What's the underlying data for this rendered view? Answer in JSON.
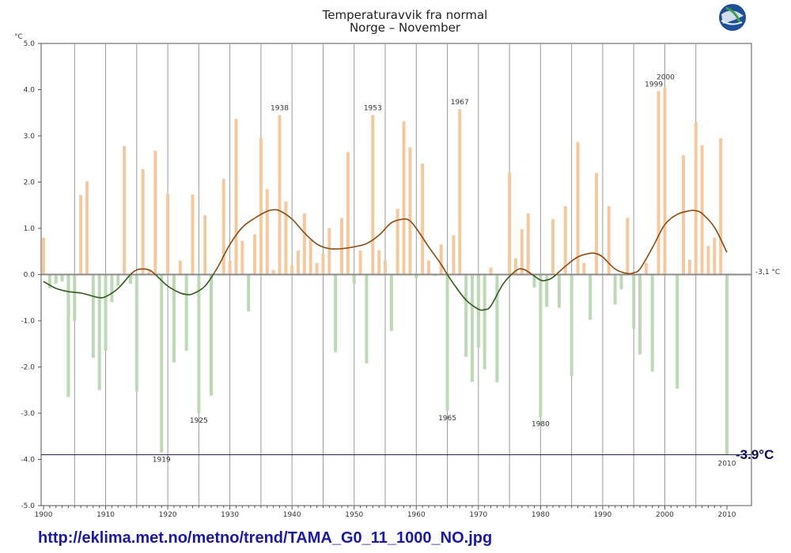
{
  "chart_data": {
    "type": "bar",
    "title": "Temperaturavvik fra normal",
    "subtitle": "Norge – November",
    "ylabel": "°C",
    "xlabel": "",
    "ylim": [
      -5.0,
      5.0
    ],
    "xlim": [
      1900,
      2010
    ],
    "grid": true,
    "y_ticks": [
      "5.0",
      "4.0",
      "3.0",
      "2.0",
      "1.0",
      "0.0",
      "-1.0",
      "-2.0",
      "-3.0",
      "-4.0",
      "-5.0"
    ],
    "y_tick_values": [
      5,
      4,
      3,
      2,
      1,
      0,
      -1,
      -2,
      -3,
      -4,
      -5
    ],
    "x_ticks": [
      1900,
      1910,
      1920,
      1930,
      1940,
      1950,
      1960,
      1970,
      1980,
      1990,
      2000,
      2010
    ],
    "baseline_label": "-3,1 °C",
    "reference_line_value": -3.9,
    "reference_line_label": "-3.9°C",
    "positive_color": "#f5c9a0",
    "negative_color": "#bcd8b4",
    "smooth_positive_color": "#8b4a10",
    "smooth_negative_color": "#2f5a1e",
    "years": [
      1900,
      1901,
      1902,
      1903,
      1904,
      1905,
      1906,
      1907,
      1908,
      1909,
      1910,
      1911,
      1912,
      1913,
      1914,
      1915,
      1916,
      1917,
      1918,
      1919,
      1920,
      1921,
      1922,
      1923,
      1924,
      1925,
      1926,
      1927,
      1928,
      1929,
      1930,
      1931,
      1932,
      1933,
      1934,
      1935,
      1936,
      1937,
      1938,
      1939,
      1940,
      1941,
      1942,
      1943,
      1944,
      1945,
      1946,
      1947,
      1948,
      1949,
      1950,
      1951,
      1952,
      1953,
      1954,
      1955,
      1956,
      1957,
      1958,
      1959,
      1960,
      1961,
      1962,
      1963,
      1964,
      1965,
      1966,
      1967,
      1968,
      1969,
      1970,
      1971,
      1972,
      1973,
      1974,
      1975,
      1976,
      1977,
      1978,
      1979,
      1980,
      1981,
      1982,
      1983,
      1984,
      1985,
      1986,
      1987,
      1988,
      1989,
      1990,
      1991,
      1992,
      1993,
      1994,
      1995,
      1996,
      1997,
      1998,
      1999,
      2000,
      2001,
      2002,
      2003,
      2004,
      2005,
      2006,
      2007,
      2008,
      2009,
      2010
    ],
    "values": [
      0.8,
      -0.3,
      -0.2,
      -0.15,
      -2.65,
      -1.0,
      1.72,
      2.02,
      -1.8,
      -2.5,
      -1.65,
      -0.6,
      -0.25,
      2.78,
      -0.2,
      -2.53,
      2.28,
      0.1,
      2.68,
      -3.85,
      1.75,
      -1.9,
      0.3,
      -1.65,
      1.73,
      -3.0,
      1.28,
      -2.62,
      0.0,
      2.07,
      0.3,
      3.37,
      0.73,
      -0.8,
      0.87,
      2.96,
      1.85,
      0.1,
      3.45,
      1.58,
      0.2,
      0.52,
      1.32,
      0.75,
      0.25,
      0.45,
      1.0,
      -1.68,
      1.22,
      2.65,
      -0.2,
      0.52,
      -1.92,
      3.45,
      0.52,
      0.3,
      -1.22,
      1.42,
      3.32,
      2.75,
      -0.08,
      2.4,
      0.3,
      -0.03,
      0.65,
      -2.95,
      0.85,
      3.58,
      -1.78,
      -2.32,
      -1.58,
      -2.05,
      0.15,
      -2.33,
      0.0,
      2.2,
      0.35,
      0.98,
      1.32,
      -0.28,
      -3.08,
      -0.7,
      1.2,
      -0.72,
      1.48,
      -2.2,
      2.87,
      0.25,
      -0.98,
      2.2,
      0.0,
      1.48,
      -0.65,
      -0.32,
      1.23,
      -1.18,
      -1.73,
      0.25,
      -2.1,
      3.97,
      4.05,
      0.0,
      -2.47,
      2.58,
      0.32,
      3.3,
      2.8,
      0.62,
      0.8,
      2.95,
      -3.9
    ],
    "smoothed": {
      "years": [
        1900,
        1902,
        1904,
        1906,
        1908,
        1909,
        1910,
        1912,
        1914,
        1915,
        1916,
        1917,
        1918,
        1920,
        1922,
        1923,
        1924,
        1926,
        1928,
        1930,
        1932,
        1934,
        1936,
        1937,
        1938,
        1940,
        1942,
        1944,
        1946,
        1948,
        1950,
        1952,
        1954,
        1956,
        1958,
        1959,
        1960,
        1962,
        1964,
        1965,
        1966,
        1968,
        1970,
        1971,
        1972,
        1974,
        1976,
        1977,
        1978,
        1980,
        1981,
        1982,
        1984,
        1986,
        1988,
        1989,
        1990,
        1992,
        1994,
        1995,
        1996,
        1998,
        2000,
        2002,
        2004,
        2005,
        2006,
        2008,
        2010
      ],
      "values": [
        -0.15,
        -0.3,
        -0.37,
        -0.4,
        -0.47,
        -0.5,
        -0.48,
        -0.3,
        0.0,
        0.1,
        0.12,
        0.1,
        0.0,
        -0.25,
        -0.4,
        -0.43,
        -0.42,
        -0.25,
        0.15,
        0.65,
        1.02,
        1.22,
        1.37,
        1.4,
        1.38,
        1.2,
        0.9,
        0.66,
        0.56,
        0.56,
        0.6,
        0.67,
        0.85,
        1.12,
        1.2,
        1.16,
        1.0,
        0.6,
        0.22,
        0.0,
        -0.2,
        -0.55,
        -0.75,
        -0.76,
        -0.68,
        -0.2,
        0.08,
        0.12,
        0.06,
        -0.12,
        -0.12,
        -0.06,
        0.18,
        0.38,
        0.46,
        0.45,
        0.38,
        0.12,
        0.02,
        0.04,
        0.12,
        0.58,
        1.08,
        1.3,
        1.38,
        1.38,
        1.32,
        1.02,
        0.48
      ]
    },
    "annotations": [
      {
        "year": 1919,
        "label": "1919"
      },
      {
        "year": 1925,
        "label": "1925"
      },
      {
        "year": 1938,
        "label": "1938"
      },
      {
        "year": 1953,
        "label": "1953"
      },
      {
        "year": 1965,
        "label": "1965"
      },
      {
        "year": 1967,
        "label": "1967"
      },
      {
        "year": 1980,
        "label": "1980"
      },
      {
        "year": 1999,
        "label": "1999"
      },
      {
        "year": 2000,
        "label": "2000"
      },
      {
        "year": 2010,
        "label": "2010"
      }
    ]
  },
  "footer": {
    "url": "http://eklima.met.no/metno/trend/TAMA_G0_11_1000_NO.jpg"
  },
  "logo": {
    "icon": "globe-logo-icon"
  }
}
